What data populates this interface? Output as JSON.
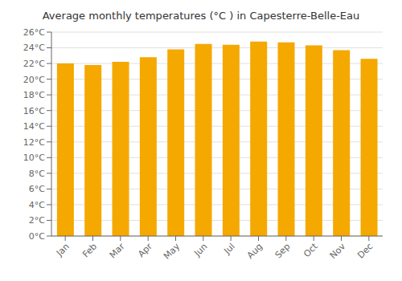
{
  "chart_data": {
    "type": "bar",
    "title": "Average monthly temperatures (°C ) in Capesterre-Belle-Eau",
    "categories": [
      "Jan",
      "Feb",
      "Mar",
      "Apr",
      "May",
      "Jun",
      "Jul",
      "Aug",
      "Sep",
      "Oct",
      "Nov",
      "Dec"
    ],
    "values": [
      22.0,
      21.8,
      22.2,
      22.8,
      23.8,
      24.5,
      24.4,
      24.8,
      24.7,
      24.3,
      23.7,
      22.6
    ],
    "color": "#F5A800",
    "ylim": [
      0,
      26
    ],
    "yticks": [
      {
        "value": 0,
        "label": "0°C"
      },
      {
        "value": 2,
        "label": "2°C"
      },
      {
        "value": 4,
        "label": "4°C"
      },
      {
        "value": 6,
        "label": "6°C"
      },
      {
        "value": 8,
        "label": "8°C"
      },
      {
        "value": 10,
        "label": "10°C"
      },
      {
        "value": 12,
        "label": "12°C"
      },
      {
        "value": 14,
        "label": "14°C"
      },
      {
        "value": 16,
        "label": "16°C"
      },
      {
        "value": 18,
        "label": "18°C"
      },
      {
        "value": 20,
        "label": "20°C"
      },
      {
        "value": 22,
        "label": "22°C"
      },
      {
        "value": 24,
        "label": "24°C"
      },
      {
        "value": 26,
        "label": "26°C"
      }
    ],
    "grid": true
  }
}
